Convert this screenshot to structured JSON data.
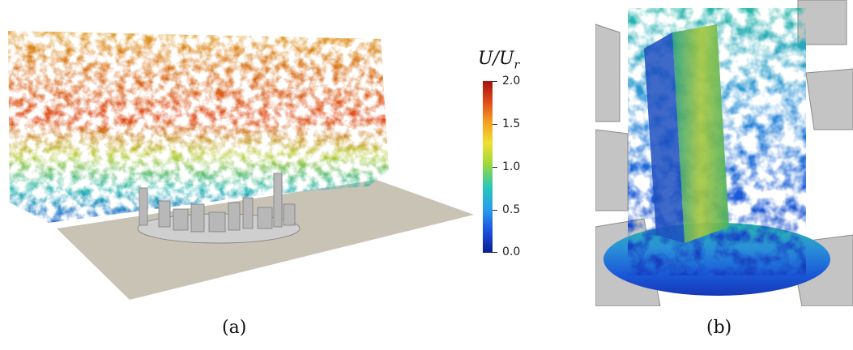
{
  "panel_a": {
    "caption": "(a)",
    "colorbar": {
      "title_main": "U/U",
      "title_sub": "r",
      "ticks": [
        "2.0",
        "1.5",
        "1.0",
        "0.5",
        "0.0"
      ]
    }
  },
  "panel_b": {
    "caption": "(b)"
  },
  "colors": {
    "ground": "#c9c3b6",
    "building": "#b8b8b8",
    "colormap_low": "#0a1d8c",
    "colormap_high": "#a51010"
  }
}
